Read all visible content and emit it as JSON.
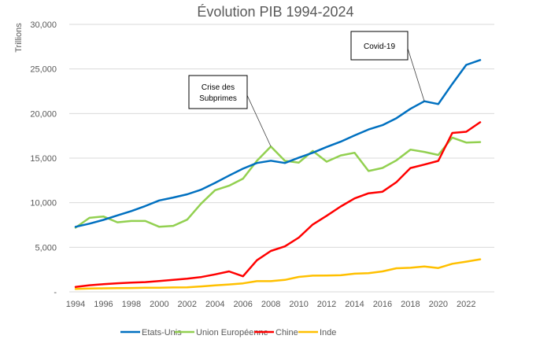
{
  "chart_data": {
    "type": "line",
    "title": "Évolution PIB 1994-2024",
    "xlabel": "",
    "ylabel": "Trillions",
    "ylim": [
      0,
      30000
    ],
    "xlim": [
      1994,
      2023
    ],
    "grid": true,
    "legend_position": "bottom",
    "y_ticks": [
      {
        "value": 0,
        "label": "-"
      },
      {
        "value": 5000,
        "label": "5,000"
      },
      {
        "value": 10000,
        "label": "10,000"
      },
      {
        "value": 15000,
        "label": "15,000"
      },
      {
        "value": 20000,
        "label": "20,000"
      },
      {
        "value": 25000,
        "label": "25,000"
      },
      {
        "value": 30000,
        "label": "30,000"
      }
    ],
    "x_ticks": [
      "1994",
      "1996",
      "1998",
      "2000",
      "2002",
      "2004",
      "2006",
      "2008",
      "2010",
      "2012",
      "2014",
      "2016",
      "2018",
      "2020",
      "2022"
    ],
    "x": [
      1994,
      1995,
      1996,
      1997,
      1998,
      1999,
      2000,
      2001,
      2002,
      2003,
      2004,
      2005,
      2006,
      2007,
      2008,
      2009,
      2010,
      2011,
      2012,
      2013,
      2014,
      2015,
      2016,
      2017,
      2018,
      2019,
      2020,
      2021,
      2022,
      2023
    ],
    "series": [
      {
        "name": "Etats-Unis",
        "color": "#0070C0",
        "values": [
          7300,
          7650,
          8070,
          8580,
          9060,
          9630,
          10250,
          10580,
          10940,
          11460,
          12220,
          13040,
          13820,
          14450,
          14710,
          14450,
          15050,
          15600,
          16250,
          16840,
          17550,
          18210,
          18700,
          19480,
          20530,
          21380,
          21060,
          23320,
          25460,
          26000
        ]
      },
      {
        "name": "Union Européenne",
        "color": "#92D050",
        "values": [
          7200,
          8300,
          8450,
          7800,
          7950,
          7950,
          7300,
          7400,
          8100,
          9900,
          11400,
          11900,
          12700,
          14700,
          16300,
          14700,
          14500,
          15800,
          14600,
          15300,
          15600,
          13550,
          13900,
          14750,
          15950,
          15700,
          15350,
          17300,
          16750,
          16800
        ]
      },
      {
        "name": "Chine",
        "color": "#FF0000",
        "values": [
          560,
          740,
          860,
          960,
          1030,
          1090,
          1210,
          1340,
          1470,
          1660,
          1960,
          2290,
          1750,
          3550,
          4590,
          5100,
          6090,
          7550,
          8530,
          9570,
          10480,
          11060,
          11230,
          12310,
          13890,
          14280,
          14690,
          17820,
          17960,
          19020
        ]
      },
      {
        "name": "Inde",
        "color": "#FFC000",
        "values": [
          330,
          370,
          400,
          420,
          430,
          470,
          470,
          490,
          510,
          610,
          720,
          830,
          950,
          1200,
          1200,
          1340,
          1680,
          1820,
          1830,
          1860,
          2040,
          2100,
          2290,
          2650,
          2700,
          2840,
          2670,
          3150,
          3390,
          3650
        ]
      }
    ],
    "annotations": [
      {
        "text": "Crise des Subprimes",
        "x": 2008,
        "series": "Union Européenne"
      },
      {
        "text": "Covid-19",
        "x": 2019,
        "series": "Etats-Unis"
      }
    ]
  }
}
